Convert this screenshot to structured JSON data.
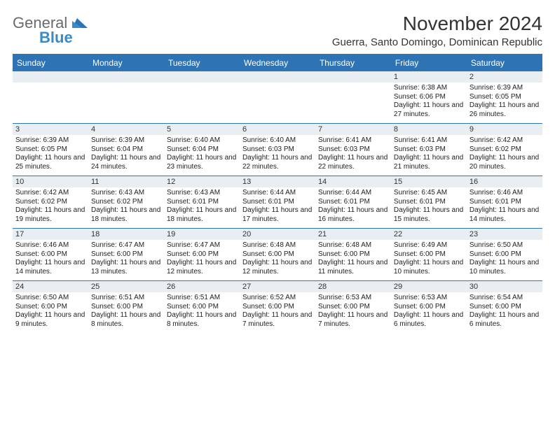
{
  "logo": {
    "line1": "General",
    "line2": "Blue"
  },
  "title": "November 2024",
  "subtitle": "Guerra, Santo Domingo, Dominican Republic",
  "colors": {
    "header_bar": "#2e74b5",
    "band": "#e9eef2",
    "logo_gray": "#6b6b6b",
    "logo_blue": "#3a8ac8",
    "text": "#222222",
    "background": "#ffffff"
  },
  "weekdays": [
    "Sunday",
    "Monday",
    "Tuesday",
    "Wednesday",
    "Thursday",
    "Friday",
    "Saturday"
  ],
  "weeks": [
    [
      {
        "n": "",
        "sr": "",
        "ss": "",
        "dl": ""
      },
      {
        "n": "",
        "sr": "",
        "ss": "",
        "dl": ""
      },
      {
        "n": "",
        "sr": "",
        "ss": "",
        "dl": ""
      },
      {
        "n": "",
        "sr": "",
        "ss": "",
        "dl": ""
      },
      {
        "n": "",
        "sr": "",
        "ss": "",
        "dl": ""
      },
      {
        "n": "1",
        "sr": "Sunrise: 6:38 AM",
        "ss": "Sunset: 6:06 PM",
        "dl": "Daylight: 11 hours and 27 minutes."
      },
      {
        "n": "2",
        "sr": "Sunrise: 6:39 AM",
        "ss": "Sunset: 6:05 PM",
        "dl": "Daylight: 11 hours and 26 minutes."
      }
    ],
    [
      {
        "n": "3",
        "sr": "Sunrise: 6:39 AM",
        "ss": "Sunset: 6:05 PM",
        "dl": "Daylight: 11 hours and 25 minutes."
      },
      {
        "n": "4",
        "sr": "Sunrise: 6:39 AM",
        "ss": "Sunset: 6:04 PM",
        "dl": "Daylight: 11 hours and 24 minutes."
      },
      {
        "n": "5",
        "sr": "Sunrise: 6:40 AM",
        "ss": "Sunset: 6:04 PM",
        "dl": "Daylight: 11 hours and 23 minutes."
      },
      {
        "n": "6",
        "sr": "Sunrise: 6:40 AM",
        "ss": "Sunset: 6:03 PM",
        "dl": "Daylight: 11 hours and 22 minutes."
      },
      {
        "n": "7",
        "sr": "Sunrise: 6:41 AM",
        "ss": "Sunset: 6:03 PM",
        "dl": "Daylight: 11 hours and 22 minutes."
      },
      {
        "n": "8",
        "sr": "Sunrise: 6:41 AM",
        "ss": "Sunset: 6:03 PM",
        "dl": "Daylight: 11 hours and 21 minutes."
      },
      {
        "n": "9",
        "sr": "Sunrise: 6:42 AM",
        "ss": "Sunset: 6:02 PM",
        "dl": "Daylight: 11 hours and 20 minutes."
      }
    ],
    [
      {
        "n": "10",
        "sr": "Sunrise: 6:42 AM",
        "ss": "Sunset: 6:02 PM",
        "dl": "Daylight: 11 hours and 19 minutes."
      },
      {
        "n": "11",
        "sr": "Sunrise: 6:43 AM",
        "ss": "Sunset: 6:02 PM",
        "dl": "Daylight: 11 hours and 18 minutes."
      },
      {
        "n": "12",
        "sr": "Sunrise: 6:43 AM",
        "ss": "Sunset: 6:01 PM",
        "dl": "Daylight: 11 hours and 18 minutes."
      },
      {
        "n": "13",
        "sr": "Sunrise: 6:44 AM",
        "ss": "Sunset: 6:01 PM",
        "dl": "Daylight: 11 hours and 17 minutes."
      },
      {
        "n": "14",
        "sr": "Sunrise: 6:44 AM",
        "ss": "Sunset: 6:01 PM",
        "dl": "Daylight: 11 hours and 16 minutes."
      },
      {
        "n": "15",
        "sr": "Sunrise: 6:45 AM",
        "ss": "Sunset: 6:01 PM",
        "dl": "Daylight: 11 hours and 15 minutes."
      },
      {
        "n": "16",
        "sr": "Sunrise: 6:46 AM",
        "ss": "Sunset: 6:01 PM",
        "dl": "Daylight: 11 hours and 14 minutes."
      }
    ],
    [
      {
        "n": "17",
        "sr": "Sunrise: 6:46 AM",
        "ss": "Sunset: 6:00 PM",
        "dl": "Daylight: 11 hours and 14 minutes."
      },
      {
        "n": "18",
        "sr": "Sunrise: 6:47 AM",
        "ss": "Sunset: 6:00 PM",
        "dl": "Daylight: 11 hours and 13 minutes."
      },
      {
        "n": "19",
        "sr": "Sunrise: 6:47 AM",
        "ss": "Sunset: 6:00 PM",
        "dl": "Daylight: 11 hours and 12 minutes."
      },
      {
        "n": "20",
        "sr": "Sunrise: 6:48 AM",
        "ss": "Sunset: 6:00 PM",
        "dl": "Daylight: 11 hours and 12 minutes."
      },
      {
        "n": "21",
        "sr": "Sunrise: 6:48 AM",
        "ss": "Sunset: 6:00 PM",
        "dl": "Daylight: 11 hours and 11 minutes."
      },
      {
        "n": "22",
        "sr": "Sunrise: 6:49 AM",
        "ss": "Sunset: 6:00 PM",
        "dl": "Daylight: 11 hours and 10 minutes."
      },
      {
        "n": "23",
        "sr": "Sunrise: 6:50 AM",
        "ss": "Sunset: 6:00 PM",
        "dl": "Daylight: 11 hours and 10 minutes."
      }
    ],
    [
      {
        "n": "24",
        "sr": "Sunrise: 6:50 AM",
        "ss": "Sunset: 6:00 PM",
        "dl": "Daylight: 11 hours and 9 minutes."
      },
      {
        "n": "25",
        "sr": "Sunrise: 6:51 AM",
        "ss": "Sunset: 6:00 PM",
        "dl": "Daylight: 11 hours and 8 minutes."
      },
      {
        "n": "26",
        "sr": "Sunrise: 6:51 AM",
        "ss": "Sunset: 6:00 PM",
        "dl": "Daylight: 11 hours and 8 minutes."
      },
      {
        "n": "27",
        "sr": "Sunrise: 6:52 AM",
        "ss": "Sunset: 6:00 PM",
        "dl": "Daylight: 11 hours and 7 minutes."
      },
      {
        "n": "28",
        "sr": "Sunrise: 6:53 AM",
        "ss": "Sunset: 6:00 PM",
        "dl": "Daylight: 11 hours and 7 minutes."
      },
      {
        "n": "29",
        "sr": "Sunrise: 6:53 AM",
        "ss": "Sunset: 6:00 PM",
        "dl": "Daylight: 11 hours and 6 minutes."
      },
      {
        "n": "30",
        "sr": "Sunrise: 6:54 AM",
        "ss": "Sunset: 6:00 PM",
        "dl": "Daylight: 11 hours and 6 minutes."
      }
    ]
  ]
}
